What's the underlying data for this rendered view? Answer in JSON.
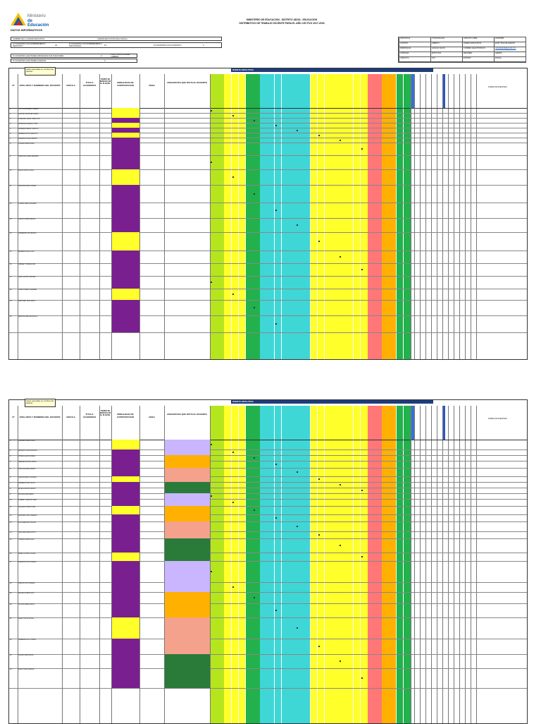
{
  "header": {
    "logo_line1": "Ministerio",
    "logo_line2": "de Educación",
    "section": "DATOS INFORMATIVOS",
    "title1": "MINISTERIO DE EDUCACION - DISTRITO 18D02 - EDUCACION",
    "title2": "DISTRIBUTIVO DE TRABAJO DOCENTE PARA EL AÑO LECTIVO 2017-2018"
  },
  "left_info": {
    "row1_label": "NOMBRE DE LA UNIDAD EDUCATIVA",
    "row1_value": "UNIDAD EDUCATIVA ZOILA DAVILA",
    "row2_label": "Nº DOCENTES CON NOMBRAMIENTO DEFINITIVO",
    "row2_value": "34",
    "row2_label2": "Nº DOCENTES CON NOMBRAMIENTO PROVISIONAL",
    "row2_value2": "10",
    "row2_label3": "Nº DOCENTES CON CONTRATO",
    "row2_value3": "2",
    "row3_label": "Nº DOCENTES QUE TIENEN ASIGNADAS SUS FUNCIONES",
    "row3_value": "0",
    "row3_label2": "INSTITUCION DONDE LABORA",
    "row4_label": "Nº DOCENTES QUE TIENEN LICENCIA",
    "row4_value": "0"
  },
  "right_info": [
    [
      "PROVINCIA",
      "TUNGURAHUA",
      "CIRCUITO AMIE",
      "18H00288"
    ],
    [
      "CANTON",
      "AMBATO",
      "OFERTA EDUCATIVA",
      "EGB Y BACHILLERATO"
    ],
    [
      "PARROQUIA",
      "HUACHI CHICO",
      "CORREO ELECTRONICO",
      "uezoiladavila@gmail.com"
    ],
    [
      "JORNADA",
      "MATUTINA",
      "REGIMEN",
      "SIERRA"
    ],
    [
      "CIRCUITO",
      "C07",
      "ESTADO",
      "FISCAL"
    ]
  ],
  "columns": {
    "num": "Nº",
    "name": "APELLIDOS Y NOMBRES DEL DOCENTE",
    "cedula": "CEDULA",
    "titulo": "TITULO ACADEMICO",
    "tiempo": "TIEMPO DE SERVICIO EN EL PLANTEL",
    "modalidad": "MODALIDAD DE CONTRATACION",
    "area": "AREA",
    "asignatura": "ASIGNATURA QUE DICTA EL DOCENTE",
    "oferta": "OFERTA EDUCATIVA",
    "final": "FIRMA DOCENTES"
  },
  "note": "Casos especiales en nombres del docente",
  "page1_rows": [
    "ACOSTA ALVAREZ LORENA",
    "AGUILAR SANCHEZ MARIA",
    "ALVARADO VEGA JOSE LUIS",
    "ANDRADE CARRILLO ANA",
    "BARRERA PEREZ CARLOS",
    "CABRERA SOLIS MARTHA",
    "CARRASCO DIAZ PEDRO",
    "CHAVEZ MORA ROSA",
    "CORDOVA LOPEZ ANDRES",
    "DAVILA ORTIZ LUCIA",
    "ESPINOZA RUIZ JORGE",
    "FLORES MEJIA SANDRA",
    "GARCIA NUÑEZ DIEGO",
    "GUERRERO PAZ ELENA",
    "HERRERA VACA LUIS",
    "JIMENEZ TORRES ANA",
    "LARA CASTRO MIGUEL",
    "LOPEZ RIVERA CARMEN",
    "MARTINEZ SILVA RAUL",
    "MENDOZA REYES PAOLA"
  ],
  "page2_rows": [
    "MORALES VERA JUAN",
    "NARANJO CRUZ MONICA",
    "ORTEGA LEON FABIAN",
    "PAREDES ROJAS SILVIA",
    "PEÑA SALAZAR MARIO",
    "QUIROZ BRAVO GLORIA",
    "RAMIREZ FLOR HUGO",
    "REYES ACOSTA NANCY",
    "RIOS MOLINA PABLO",
    "ROMERO CAMPOS INES",
    "SALAZAR VITERI JOSE",
    "SANCHEZ LUNA TERESA",
    "SOLIS BENITEZ OSCAR",
    "TAPIA MONTERO RUTH",
    "TORRES ALBAN IVAN",
    "URIBE CASTRO LAURA",
    "VALENCIA PINTO DARIO",
    "VARGAS SOTO MARIA",
    "VELASCO ARIAS LUZ",
    "VILLACIS MENA RAUL",
    "YEPEZ ORTIZ SONIA",
    "ZAMBRANO GIL TOMAS",
    "ZURITA HARO ANITA",
    "ALBAN CRUZ EDGAR"
  ],
  "colors": {
    "purple": "#7a1f8f",
    "yellow": "#ffff2a",
    "lime": "#b5e61d",
    "green": "#22b14c",
    "cyan": "#3fd6d6",
    "pink": "#f77",
    "orange": "#ffb000",
    "navy": "#1f3d7a",
    "salmon": "#f4a28c",
    "lavender": "#c9b6ff",
    "darkgreen": "#2a7a3a"
  }
}
